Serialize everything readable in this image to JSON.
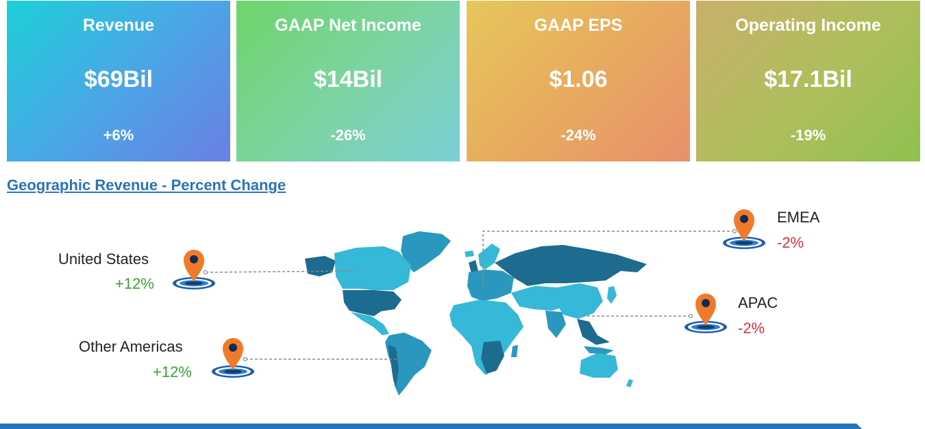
{
  "cards": [
    {
      "title": "Revenue",
      "value": "$69Bil",
      "change": "+6%"
    },
    {
      "title": "GAAP Net Income",
      "value": "$14Bil",
      "change": "-26%"
    },
    {
      "title": "GAAP EPS",
      "value": "$1.06",
      "change": "-24%"
    },
    {
      "title": "Operating Income",
      "value": "$17.1Bil",
      "change": "-19%"
    }
  ],
  "geo": {
    "title": "Geographic Revenue - Percent Change",
    "regions": [
      {
        "name": "United States",
        "change": "+12%",
        "trend": "positive"
      },
      {
        "name": "Other Americas",
        "change": "+12%",
        "trend": "positive"
      },
      {
        "name": "EMEA",
        "change": "-2%",
        "trend": "negative"
      },
      {
        "name": "APAC",
        "change": "-2%",
        "trend": "negative"
      }
    ]
  },
  "colors": {
    "positive": "#3aa035",
    "negative": "#d8313b",
    "link": "#2b73b8",
    "pin": "#f07a2a",
    "map_dark": "#1d6b8f",
    "map_light": "#36b8d8"
  }
}
